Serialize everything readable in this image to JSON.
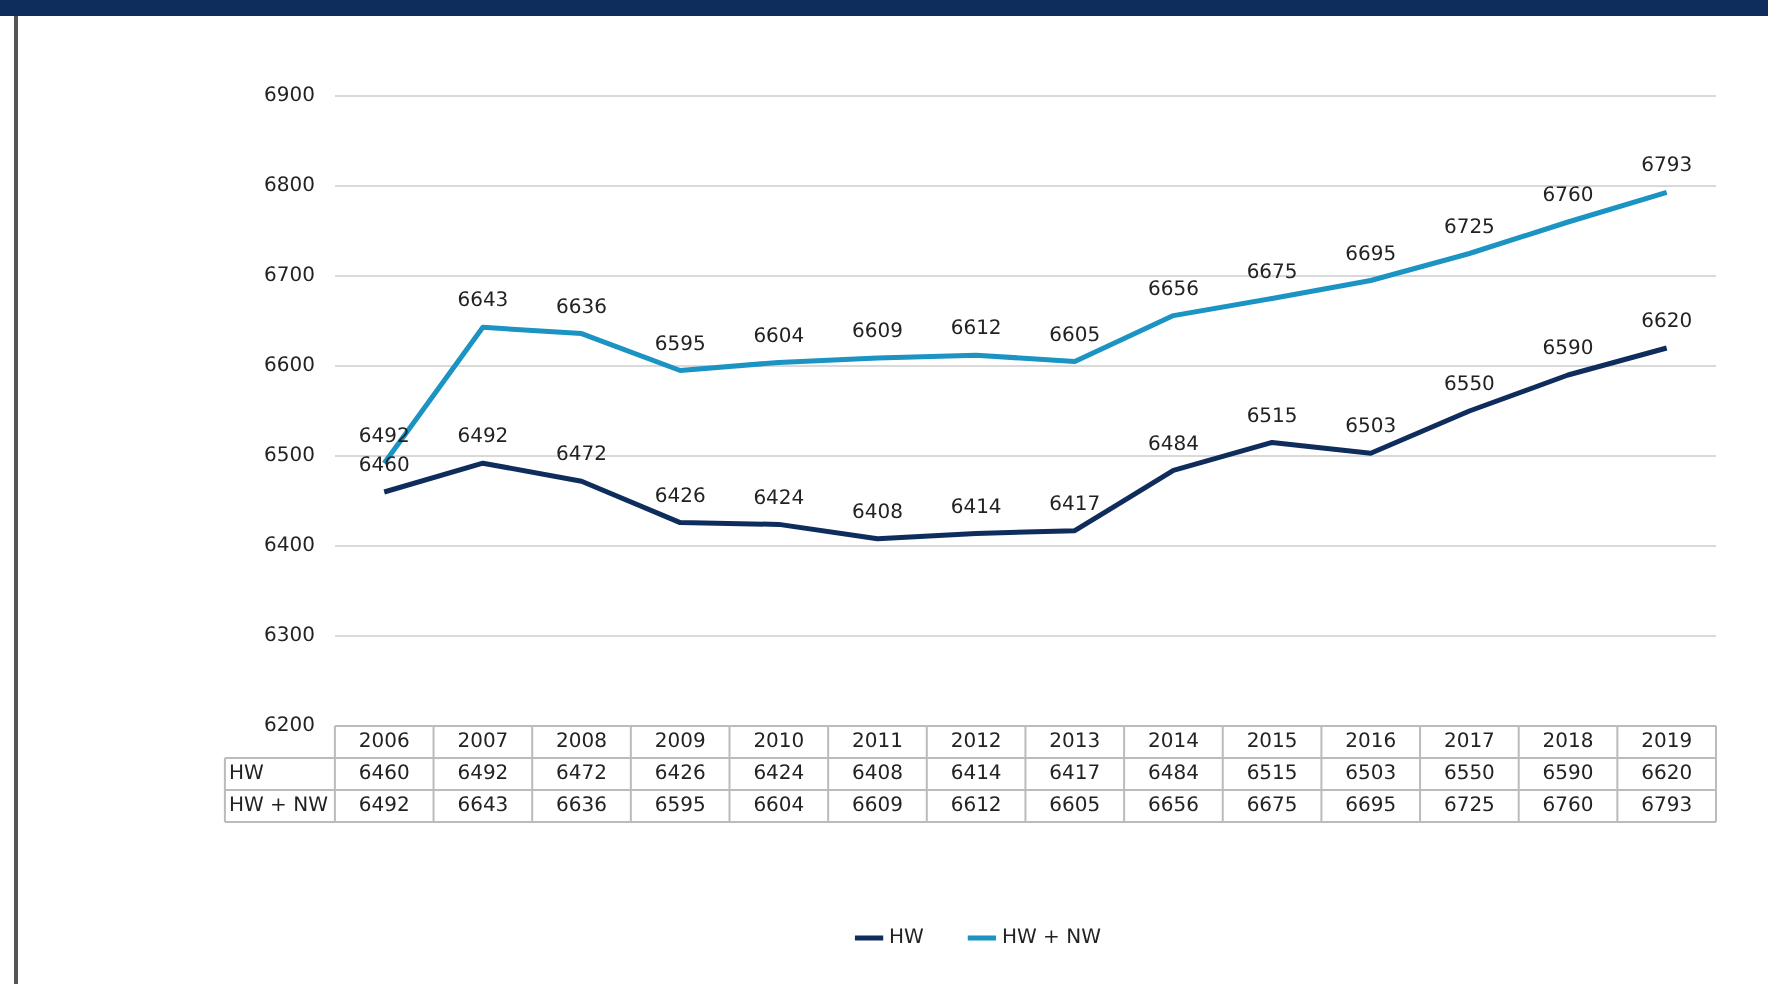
{
  "chart_data": {
    "type": "line",
    "categories": [
      "2006",
      "2007",
      "2008",
      "2009",
      "2010",
      "2011",
      "2012",
      "2013",
      "2014",
      "2015",
      "2016",
      "2017",
      "2018",
      "2019"
    ],
    "series": [
      {
        "name": "HW",
        "color": "#0f2d5c",
        "values": [
          6460,
          6492,
          6472,
          6426,
          6424,
          6408,
          6414,
          6417,
          6484,
          6515,
          6503,
          6550,
          6590,
          6620
        ]
      },
      {
        "name": "HW + NW",
        "color": "#1b93c3",
        "values": [
          6492,
          6643,
          6636,
          6595,
          6604,
          6609,
          6612,
          6605,
          6656,
          6675,
          6695,
          6725,
          6760,
          6793
        ]
      }
    ],
    "annotations": [
      {
        "text": "6460",
        "x": "2006",
        "y": 6460
      },
      {
        "text": "6492",
        "x": "2007",
        "y": 6492
      },
      {
        "text": "6472",
        "x": "2008",
        "y": 6472
      },
      {
        "text": "6426",
        "x": "2009",
        "y": 6426
      },
      {
        "text": "6424",
        "x": "2010",
        "y": 6424
      },
      {
        "text": "6408",
        "x": "2011",
        "y": 6408
      },
      {
        "text": "6414",
        "x": "2012",
        "y": 6414
      },
      {
        "text": "6417",
        "x": "2013",
        "y": 6417
      },
      {
        "text": "6484",
        "x": "2014",
        "y": 6484
      },
      {
        "text": "6515",
        "x": "2015",
        "y": 6515
      },
      {
        "text": "6503",
        "x": "2016",
        "y": 6503
      },
      {
        "text": "6550",
        "x": "2017",
        "y": 6550
      },
      {
        "text": "6590",
        "x": "2018",
        "y": 6590
      },
      {
        "text": "6620",
        "x": "2019",
        "y": 6620
      },
      {
        "text": "6492",
        "x": "2006",
        "y": 6492
      },
      {
        "text": "6643",
        "x": "2007",
        "y": 6643
      },
      {
        "text": "6636",
        "x": "2008",
        "y": 6636
      },
      {
        "text": "6595",
        "x": "2009",
        "y": 6595
      },
      {
        "text": "6604",
        "x": "2010",
        "y": 6604
      },
      {
        "text": "6609",
        "x": "2011",
        "y": 6609
      },
      {
        "text": "6612",
        "x": "2012",
        "y": 6612
      },
      {
        "text": "6605",
        "x": "2013",
        "y": 6605
      },
      {
        "text": "6656",
        "x": "2014",
        "y": 6656
      },
      {
        "text": "6675",
        "x": "2015",
        "y": 6675
      },
      {
        "text": "6695",
        "x": "2016",
        "y": 6695
      },
      {
        "text": "6725",
        "x": "2017",
        "y": 6725
      },
      {
        "text": "6760",
        "x": "2018",
        "y": 6760
      },
      {
        "text": "6793",
        "x": "2019",
        "y": 6793
      }
    ],
    "ylim": [
      6200,
      6900
    ],
    "yticks": [
      6200,
      6300,
      6400,
      6500,
      6600,
      6700,
      6800,
      6900
    ],
    "grid": "y",
    "legend": "bottom",
    "marker": "none",
    "line_style": "solid",
    "data_labels": true
  }
}
